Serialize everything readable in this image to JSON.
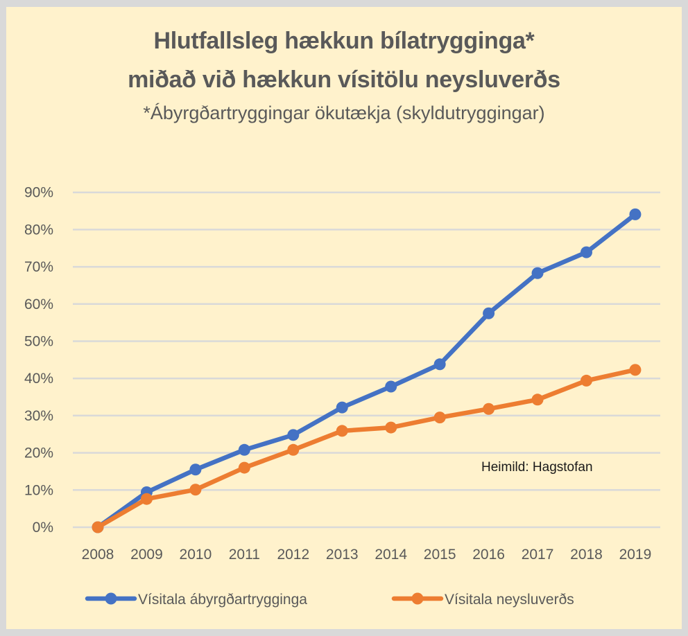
{
  "title_line1": "Hlutfallsleg hækkun bílatrygginga*",
  "title_line2": "miðað við hækkun vísitölu neysluverðs",
  "subtitle": "*Ábyrgðartryggingar ökutækja (skyldutryggingar)",
  "source_note": "Heimild: Hagstofan",
  "y_ticks": [
    "0%",
    "10%",
    "20%",
    "30%",
    "40%",
    "50%",
    "60%",
    "70%",
    "80%",
    "90%"
  ],
  "x_ticks": [
    "2008",
    "2009",
    "2010",
    "2011",
    "2012",
    "2013",
    "2014",
    "2015",
    "2016",
    "2017",
    "2018",
    "2019"
  ],
  "legend": [
    {
      "label": "Vísitala ábyrgðartrygginga",
      "color": "#4472c4"
    },
    {
      "label": "Vísitala neysluverðs",
      "color": "#ed7d31"
    }
  ],
  "colors": {
    "background": "#fff2cc",
    "border": "#d9d9d9",
    "grid": "#d9d9d9",
    "text": "#595959"
  },
  "chart_data": {
    "type": "line",
    "title": "Hlutfallsleg hækkun bílatrygginga* miðað við hækkun vísitölu neysluverðs",
    "subtitle": "*Ábyrgðartryggingar ökutækja (skyldutryggingar)",
    "x": [
      "2008",
      "2009",
      "2010",
      "2011",
      "2012",
      "2013",
      "2014",
      "2015",
      "2016",
      "2017",
      "2018",
      "2019"
    ],
    "series": [
      {
        "name": "Vísitala ábyrgðartrygginga",
        "color": "#4472c4",
        "values": [
          0,
          9.4,
          15.5,
          20.8,
          24.8,
          32.2,
          37.8,
          43.8,
          57.5,
          68.3,
          73.9,
          84.1
        ]
      },
      {
        "name": "Vísitala neysluverðs",
        "color": "#ed7d31",
        "values": [
          0,
          7.6,
          10.1,
          16.0,
          20.8,
          25.9,
          26.8,
          29.5,
          31.8,
          34.3,
          39.4,
          42.3
        ]
      }
    ],
    "xlabel": "",
    "ylabel": "",
    "ylim": [
      0,
      90
    ],
    "y_unit": "%",
    "grid": true,
    "legend_position": "bottom",
    "annotations": [
      "Heimild: Hagstofan"
    ]
  }
}
